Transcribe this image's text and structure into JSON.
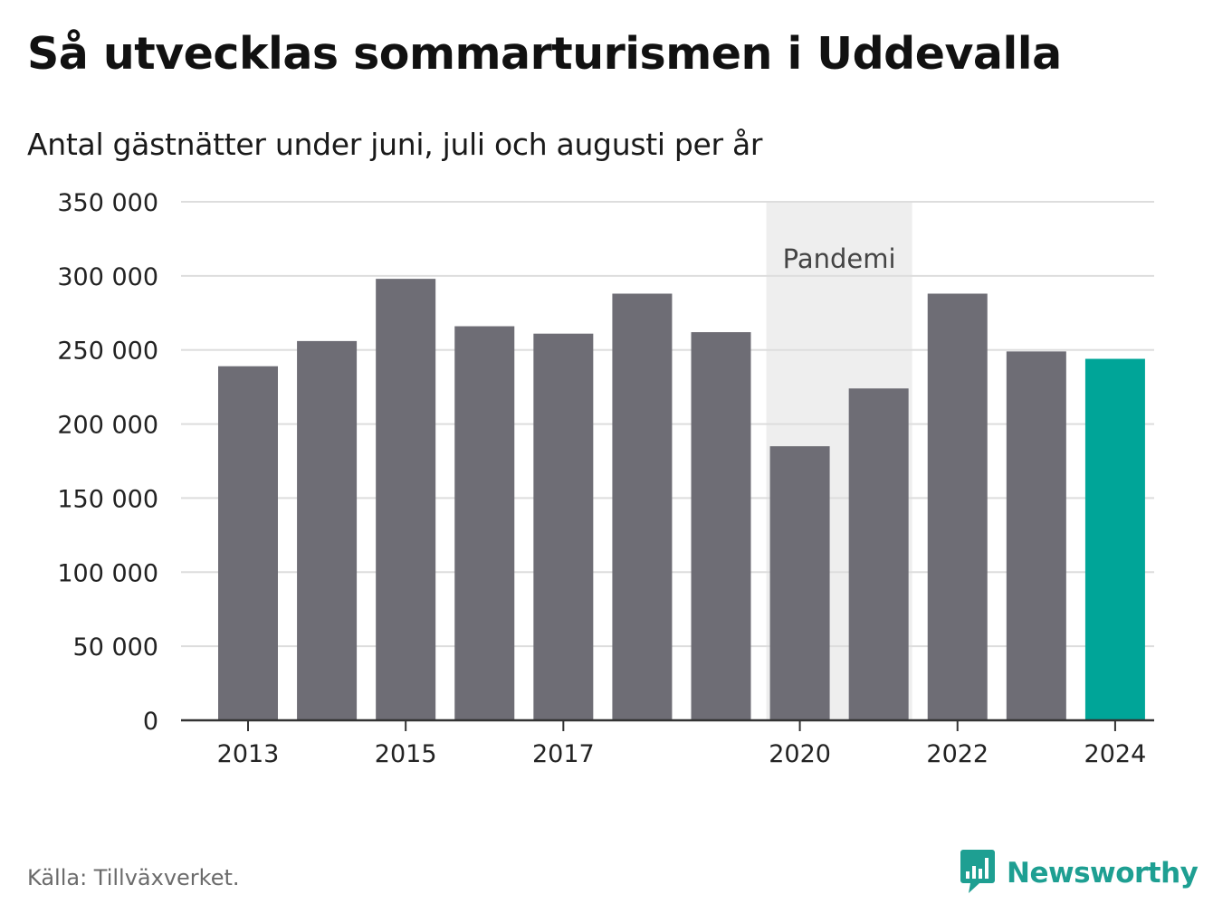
{
  "title": "Så utvecklas sommarturismen i Uddevalla",
  "subtitle": "Antal gästnätter under juni, juli och augusti per år",
  "source": "Källa: Tillväxverket.",
  "brand": {
    "name": "Newsworthy",
    "icon": "newsworthy-logo-icon",
    "color": "#1e9f92"
  },
  "colors": {
    "bar": "#6e6d75",
    "highlight": "#00a598",
    "band": "#eeeeee",
    "grid": "#dddddd",
    "axis": "#333333"
  },
  "chart_data": {
    "type": "bar",
    "categories": [
      "2013",
      "2014",
      "2015",
      "2016",
      "2017",
      "2018",
      "2019",
      "2020",
      "2021",
      "2022",
      "2023",
      "2024"
    ],
    "values": [
      239000,
      256000,
      298000,
      266000,
      261000,
      288000,
      262000,
      185000,
      224000,
      288000,
      249000,
      244000
    ],
    "highlight": "2024",
    "ylim": [
      0,
      350000
    ],
    "yticks": [
      0,
      50000,
      100000,
      150000,
      200000,
      250000,
      300000,
      350000
    ],
    "ytick_labels": [
      "0",
      "50 000",
      "100 000",
      "150 000",
      "200 000",
      "250 000",
      "300 000",
      "350 000"
    ],
    "xtick_labels": [
      "2013",
      "2015",
      "2017",
      "2020",
      "2022",
      "2024"
    ],
    "grid": true,
    "band": {
      "label": "Pandemi",
      "from": "2020",
      "to": "2021"
    }
  }
}
